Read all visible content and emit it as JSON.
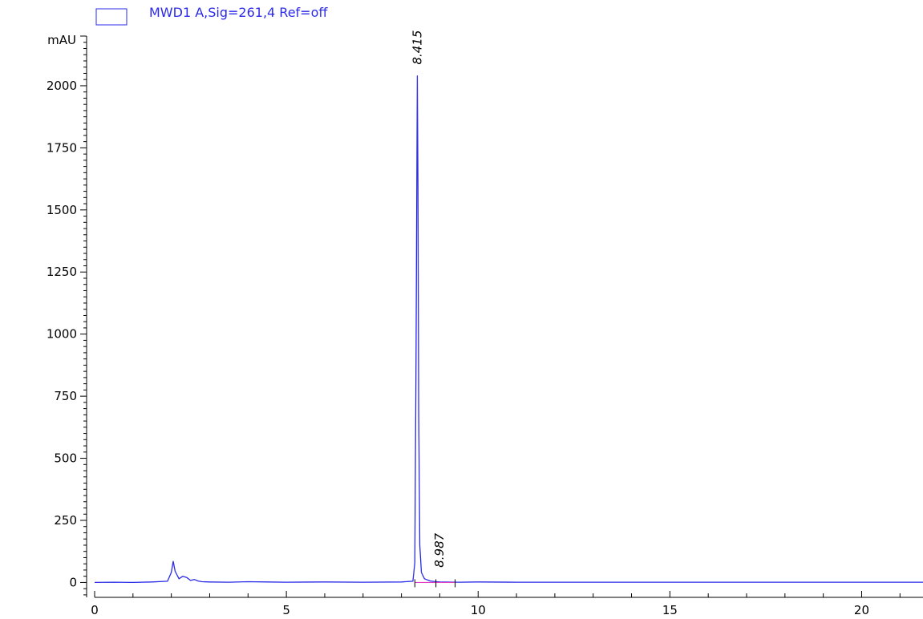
{
  "chart_data": {
    "type": "line",
    "legend": {
      "label": "MWD1 A,Sig=261,4 Ref=off",
      "placement": "top-left"
    },
    "ylabel": "mAU",
    "xlabel": "",
    "xlim": [
      0,
      21.6
    ],
    "ylim": [
      -60,
      2200
    ],
    "x_ticks": [
      0,
      5,
      10,
      15,
      20
    ],
    "y_ticks": [
      0,
      250,
      500,
      750,
      1000,
      1250,
      1500,
      1750,
      2000
    ],
    "x_tick_labels": [
      "0",
      "5",
      "10",
      "15",
      "20"
    ],
    "y_tick_labels": [
      "0",
      "250",
      "500",
      "750",
      "1000",
      "1250",
      "1500",
      "1750",
      "2000"
    ],
    "series": [
      {
        "color": "#2a2ae8",
        "x": [
          0,
          0.5,
          1.0,
          1.5,
          1.9,
          2.0,
          2.05,
          2.1,
          2.2,
          2.3,
          2.4,
          2.5,
          2.6,
          2.7,
          2.8,
          3.0,
          3.5,
          4.0,
          4.5,
          5.0,
          6.0,
          7.0,
          8.0,
          8.3,
          8.35,
          8.38,
          8.41,
          8.415,
          8.43,
          8.45,
          8.48,
          8.52,
          8.6,
          8.75,
          8.9,
          9.0,
          9.5,
          10.0,
          11.0,
          13.0,
          15.0,
          17.0,
          19.0,
          21.0,
          21.6
        ],
        "y": [
          0,
          1,
          0,
          2,
          5,
          40,
          85,
          45,
          15,
          25,
          20,
          8,
          12,
          6,
          3,
          2,
          1,
          3,
          2,
          1,
          2,
          1,
          2,
          5,
          80,
          900,
          1900,
          2040,
          1600,
          700,
          150,
          40,
          15,
          6,
          3,
          2,
          1,
          2,
          1,
          1,
          1,
          1,
          1,
          1,
          1
        ]
      }
    ],
    "baseline": {
      "color": "#e040c0",
      "x": [
        8.35,
        9.4
      ],
      "y": [
        0,
        0
      ]
    },
    "peaks": [
      {
        "label": "8.415",
        "x": 8.415,
        "y": 2040
      },
      {
        "label": "8.987",
        "x": 8.987,
        "y": 15
      }
    ],
    "grid": false,
    "background_color": "#ffffff",
    "axis_color": "#000000"
  }
}
